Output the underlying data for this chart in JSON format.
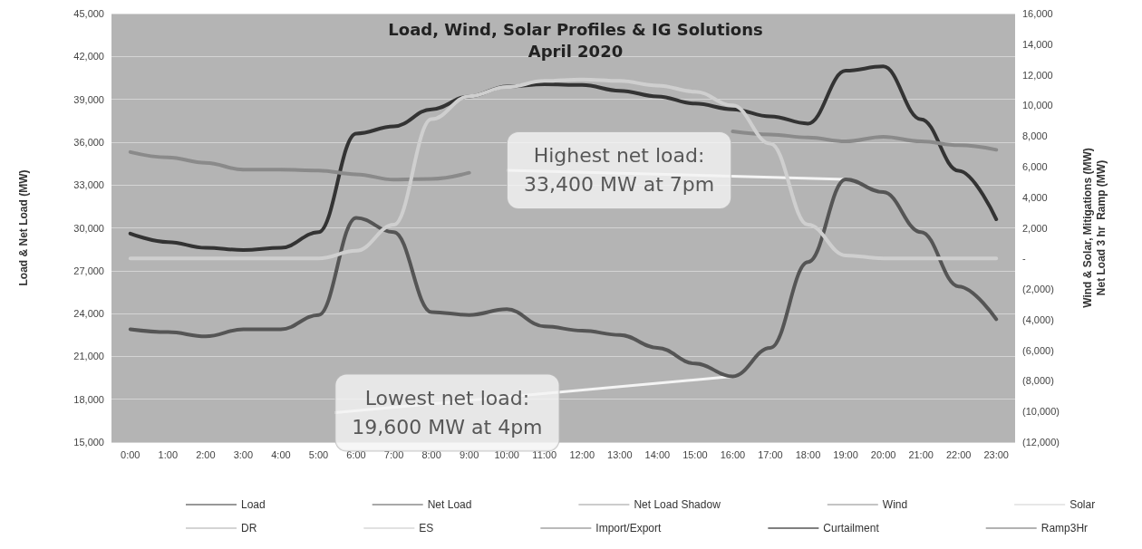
{
  "chart_data": {
    "type": "line",
    "title": "Load, Wind, Solar Profiles & IG Solutions",
    "subtitle": "April 2020",
    "ylabel": "Load & Net Load (MW)",
    "y2label": "Wind & Solar, Mitigations (MW)\nNet Load 3 hr  Ramp (MW)",
    "categories": [
      "0:00",
      "1:00",
      "2:00",
      "3:00",
      "4:00",
      "5:00",
      "6:00",
      "7:00",
      "8:00",
      "9:00",
      "10:00",
      "11:00",
      "12:00",
      "13:00",
      "14:00",
      "15:00",
      "16:00",
      "17:00",
      "18:00",
      "19:00",
      "20:00",
      "21:00",
      "22:00",
      "23:00"
    ],
    "series": [
      {
        "name": "Load",
        "color": "#333333",
        "line_style": "solid",
        "values": [
          29600,
          29000,
          28600,
          28450,
          28600,
          29700,
          36600,
          37100,
          38300,
          39200,
          39900,
          40050,
          40000,
          39600,
          39200,
          38700,
          38300,
          37800,
          37300,
          41000,
          41300,
          37600,
          34000,
          30600
        ]
      },
      {
        "name": "Net Load",
        "color": "#555555",
        "line_style": "solid",
        "values": [
          22900,
          22700,
          22400,
          22900,
          22900,
          23900,
          30700,
          29700,
          24100,
          23900,
          24300,
          23100,
          22800,
          22500,
          21600,
          20500,
          19600,
          21600,
          27600,
          33400,
          32500,
          29700,
          25900,
          23600
        ]
      },
      {
        "name": "Net Load Shadow",
        "color": "#999999",
        "line_style": "dotted",
        "values": [
          null,
          null,
          null,
          null,
          null,
          null,
          null,
          null,
          null,
          null,
          null,
          null,
          null,
          null,
          null,
          null,
          null,
          null,
          null,
          null,
          null,
          null,
          null,
          null
        ]
      },
      {
        "name": "Wind",
        "color": "#8a8a8a",
        "axis": "y2",
        "line_style": "solid",
        "values": [
          6950,
          6600,
          6250,
          5800,
          5800,
          5750,
          5500,
          5150,
          5200,
          5600,
          null,
          null,
          null,
          null,
          null,
          null,
          8300,
          8100,
          7900,
          7650,
          7950,
          7650,
          7400,
          7100
        ]
      },
      {
        "name": "Solar",
        "color": "#cfcfcf",
        "axis": "y2",
        "line_style": "solid",
        "values": [
          0,
          0,
          0,
          0,
          0,
          0,
          500,
          2200,
          9100,
          10600,
          11200,
          11600,
          11700,
          11600,
          11300,
          10900,
          10000,
          7500,
          2200,
          200,
          0,
          0,
          0,
          0
        ]
      },
      {
        "name": "DR",
        "color": "#aaaaaa",
        "axis": "y2",
        "line_style": "dotted",
        "values": [
          null,
          null,
          null,
          null,
          null,
          null,
          null,
          null,
          null,
          null,
          null,
          null,
          null,
          null,
          null,
          null,
          null,
          null,
          null,
          null,
          null,
          null,
          null,
          null
        ]
      },
      {
        "name": "ES",
        "color": "#c4c4c4",
        "axis": "y2",
        "line_style": "dashed",
        "values": [
          null,
          null,
          null,
          null,
          null,
          null,
          null,
          null,
          null,
          null,
          null,
          null,
          null,
          null,
          null,
          null,
          null,
          null,
          null,
          null,
          null,
          null,
          null,
          null
        ]
      },
      {
        "name": "Import/Export",
        "color": "#777777",
        "axis": "y2",
        "line_style": "solid",
        "values": [
          null,
          null,
          null,
          null,
          null,
          null,
          null,
          null,
          null,
          null,
          null,
          null,
          null,
          null,
          null,
          null,
          null,
          null,
          null,
          null,
          null,
          null,
          null,
          null
        ]
      },
      {
        "name": "Curtailment",
        "color": "#000000",
        "axis": "y2",
        "line_style": "solid",
        "values": [
          null,
          null,
          null,
          null,
          null,
          null,
          null,
          null,
          null,
          null,
          null,
          null,
          null,
          null,
          null,
          null,
          null,
          null,
          null,
          null,
          null,
          null,
          null,
          null
        ]
      },
      {
        "name": "Ramp3Hr",
        "color": "#666666",
        "axis": "y2",
        "line_style": "solid",
        "values": [
          null,
          null,
          null,
          null,
          null,
          null,
          null,
          null,
          null,
          null,
          null,
          null,
          null,
          null,
          null,
          null,
          null,
          null,
          null,
          null,
          null,
          null,
          null,
          null
        ]
      }
    ],
    "ylim": [
      15000,
      45000
    ],
    "yticks": [
      {
        "value": 15000,
        "label": "15,000"
      },
      {
        "value": 18000,
        "label": "18,000"
      },
      {
        "value": 21000,
        "label": "21,000"
      },
      {
        "value": 24000,
        "label": "24,000"
      },
      {
        "value": 27000,
        "label": "27,000"
      },
      {
        "value": 30000,
        "label": "30,000"
      },
      {
        "value": 33000,
        "label": "33,000"
      },
      {
        "value": 36000,
        "label": "36,000"
      },
      {
        "value": 39000,
        "label": "39,000"
      },
      {
        "value": 42000,
        "label": "42,000"
      },
      {
        "value": 45000,
        "label": "45,000"
      }
    ],
    "y2lim": [
      -12000,
      16000
    ],
    "y2ticks": [
      {
        "value": -12000,
        "label": "(12,000)"
      },
      {
        "value": -10000,
        "label": "(10,000)"
      },
      {
        "value": -8000,
        "label": "(8,000)"
      },
      {
        "value": -6000,
        "label": "(6,000)"
      },
      {
        "value": -4000,
        "label": "(4,000)"
      },
      {
        "value": -2000,
        "label": "(2,000)"
      },
      {
        "value": 0,
        "label": "-"
      },
      {
        "value": 2000,
        "label": "2,000"
      },
      {
        "value": 4000,
        "label": "4,000"
      },
      {
        "value": 6000,
        "label": "6,000"
      },
      {
        "value": 8000,
        "label": "8,000"
      },
      {
        "value": 10000,
        "label": "10,000"
      },
      {
        "value": 12000,
        "label": "12,000"
      },
      {
        "value": 14000,
        "label": "14,000"
      },
      {
        "value": 16000,
        "label": "16,000"
      }
    ],
    "annotations": [
      {
        "text": "Highest net load:\n33,400 MW at 7pm",
        "x": "19:00",
        "y": 33400
      },
      {
        "text": "Lowest net load:\n19,600 MW at 4pm",
        "x": "16:00",
        "y": 19600
      }
    ],
    "grid": "y",
    "legend": "bottom",
    "marker": "none"
  }
}
